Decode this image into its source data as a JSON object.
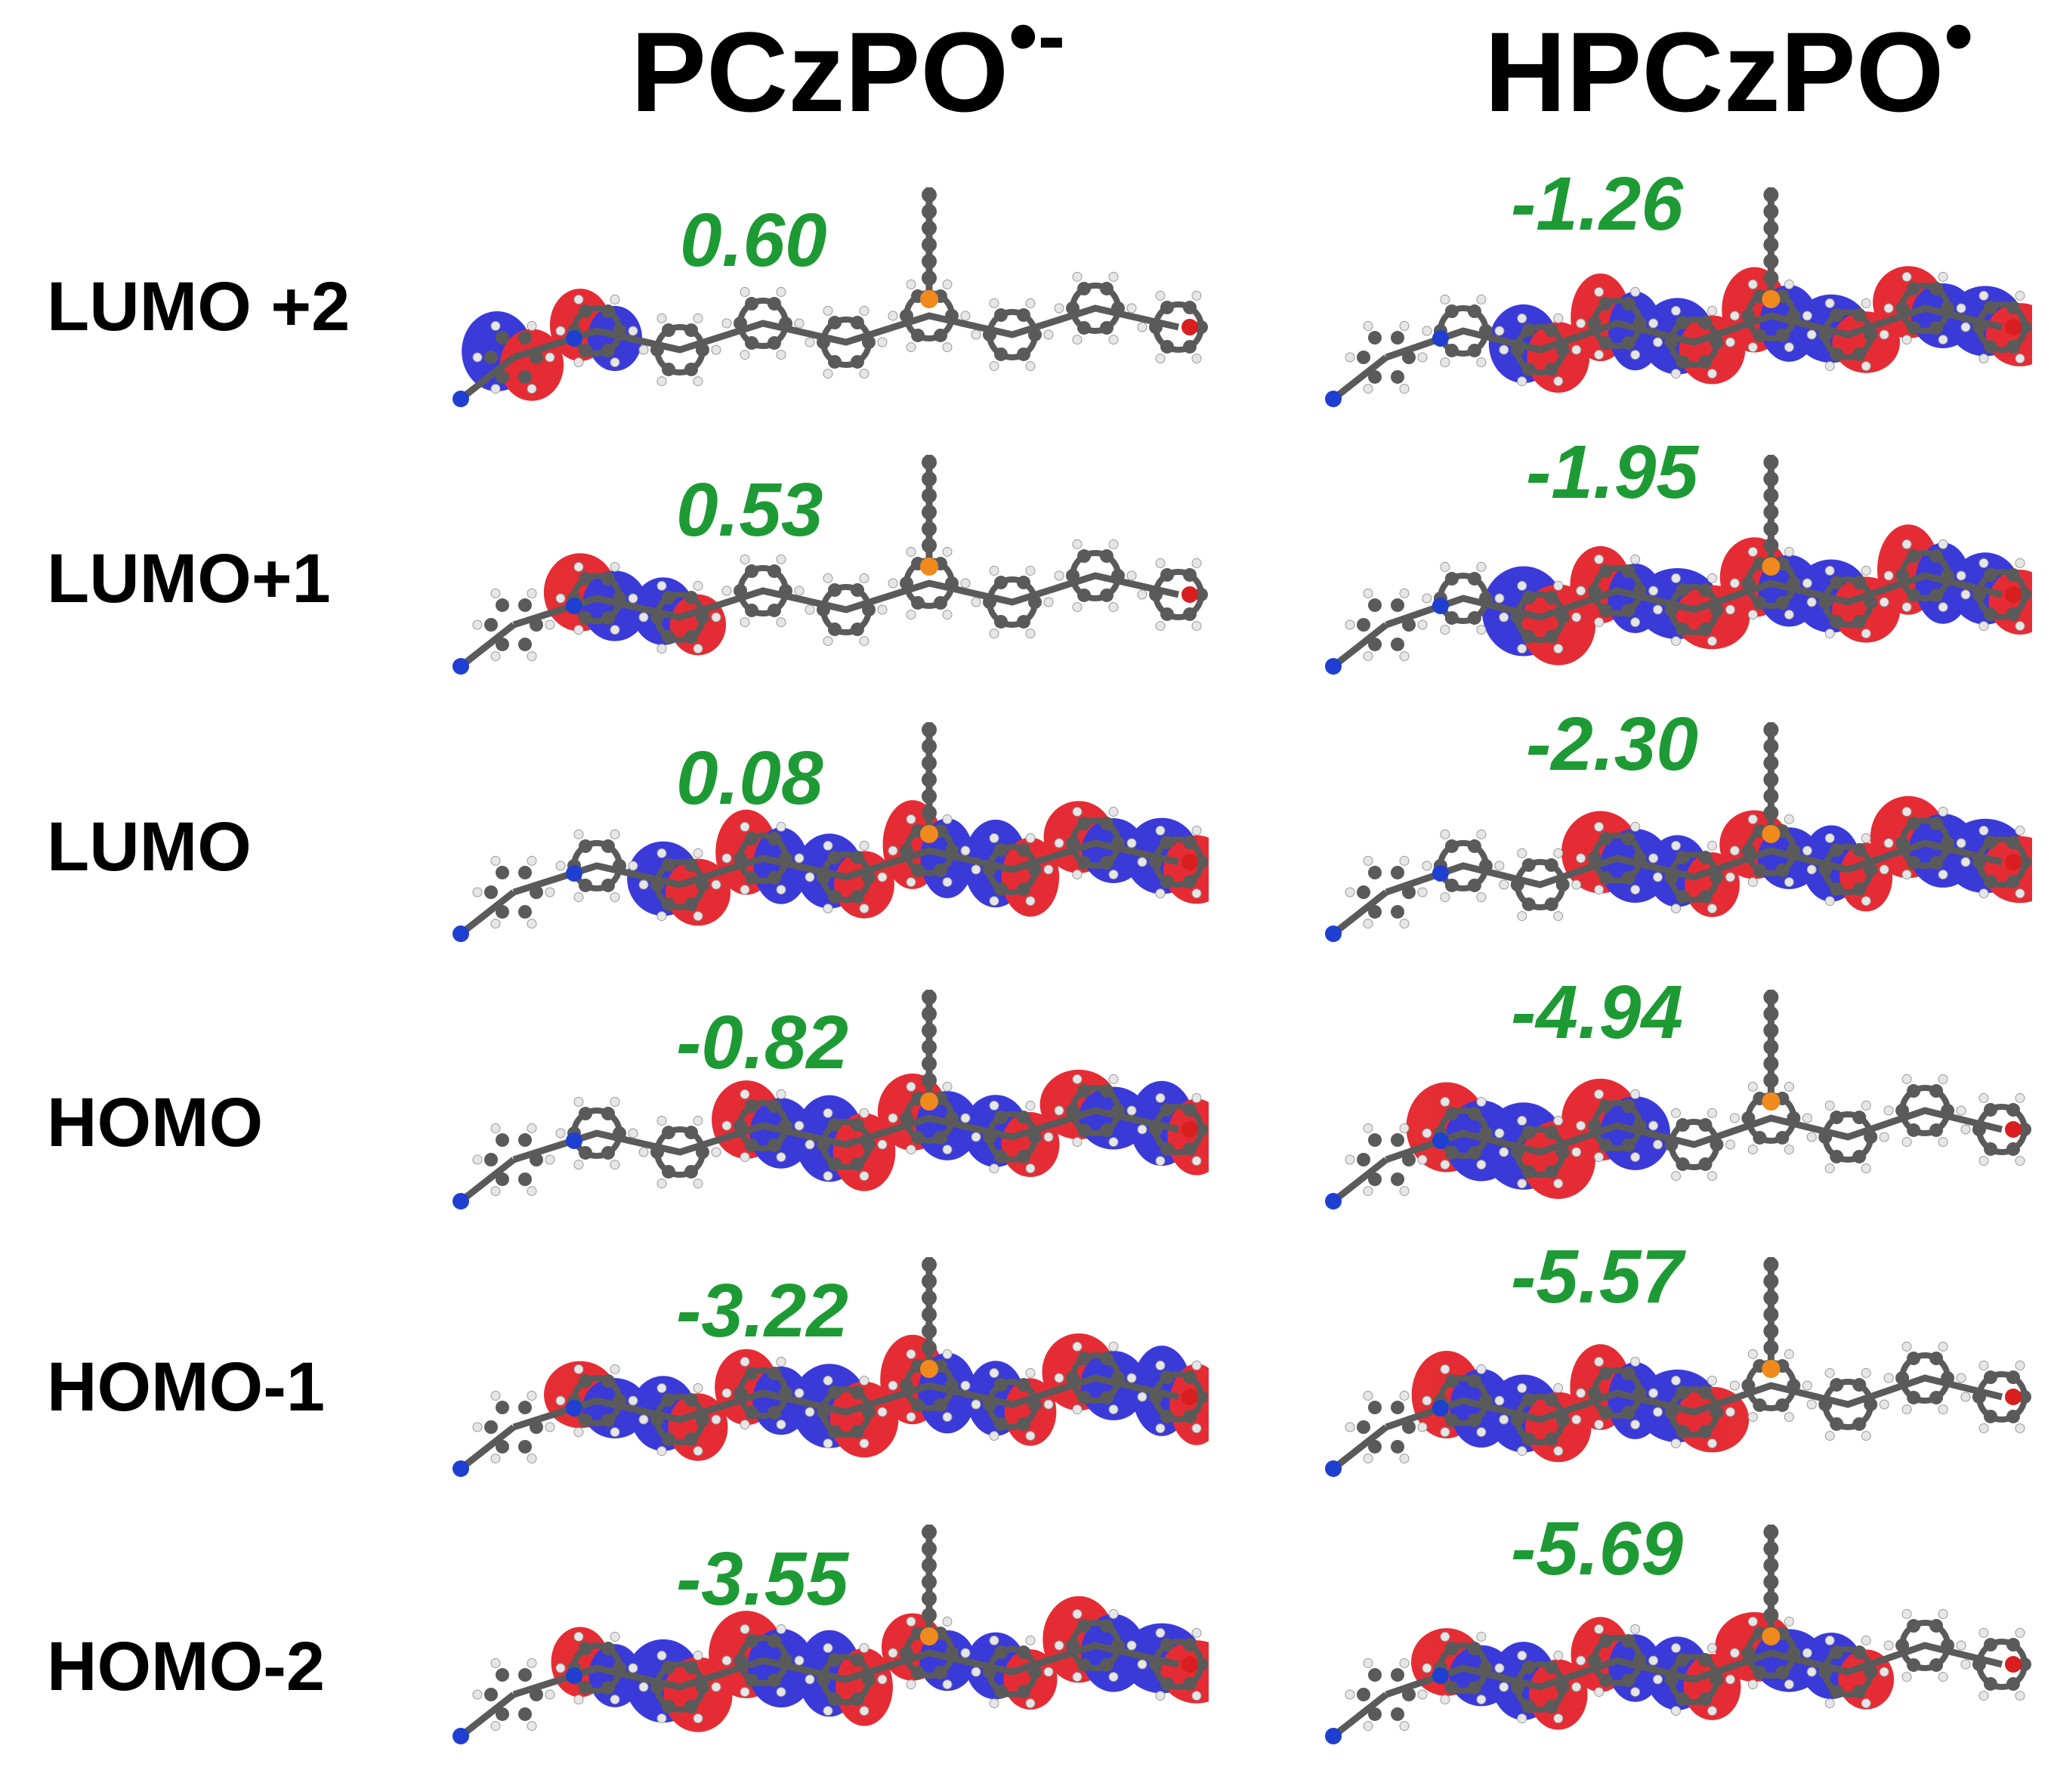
{
  "columns": [
    {
      "title": "PCzPO",
      "superscript": "•-"
    },
    {
      "title": "HPCzPO",
      "superscript": "•"
    }
  ],
  "rows": [
    {
      "label": "LUMO +2",
      "energies": [
        "0.60",
        "-1.26"
      ]
    },
    {
      "label": "LUMO+1",
      "energies": [
        "0.53",
        "-1.95"
      ]
    },
    {
      "label": "LUMO",
      "energies": [
        "0.08",
        "-2.30"
      ]
    },
    {
      "label": "HOMO",
      "energies": [
        "-0.82",
        "-4.94"
      ]
    },
    {
      "label": "HOMO-1",
      "energies": [
        "-3.22",
        "-5.57"
      ]
    },
    {
      "label": "HOMO-2",
      "energies": [
        "-3.55",
        "-5.69"
      ]
    }
  ],
  "colors": {
    "energy_text": "#1e9a35",
    "lobe_positive": "#e31b23",
    "lobe_negative": "#2a2ad6",
    "atom_carbon": "#5a5a5a",
    "atom_hydrogen": "#e6e6e6",
    "atom_nitrogen": "#1f3fd0",
    "atom_phosphorus": "#f08a1c",
    "atom_oxygen": "#d81e1e"
  },
  "orbitals": {
    "left": [
      {
        "lobes": "ring-end",
        "spans": [
          0.0,
          0.12
        ]
      },
      {
        "lobes": "core",
        "spans": [
          0.1,
          0.3
        ]
      },
      {
        "lobes": "backbone",
        "spans": [
          0.25,
          1.0
        ]
      },
      {
        "lobes": "backbone",
        "spans": [
          0.3,
          1.0
        ]
      },
      {
        "lobes": "full",
        "spans": [
          0.05,
          1.0
        ]
      },
      {
        "lobes": "full",
        "spans": [
          0.1,
          1.0
        ]
      }
    ],
    "right": [
      {
        "lobes": "backbone",
        "spans": [
          0.25,
          1.0
        ]
      },
      {
        "lobes": "backbone",
        "spans": [
          0.2,
          1.0
        ]
      },
      {
        "lobes": "backbone",
        "spans": [
          0.3,
          1.0
        ]
      },
      {
        "lobes": "core",
        "spans": [
          0.05,
          0.4
        ]
      },
      {
        "lobes": "core",
        "spans": [
          0.1,
          0.55
        ]
      },
      {
        "lobes": "mixed",
        "spans": [
          0.1,
          0.75
        ]
      }
    ]
  }
}
